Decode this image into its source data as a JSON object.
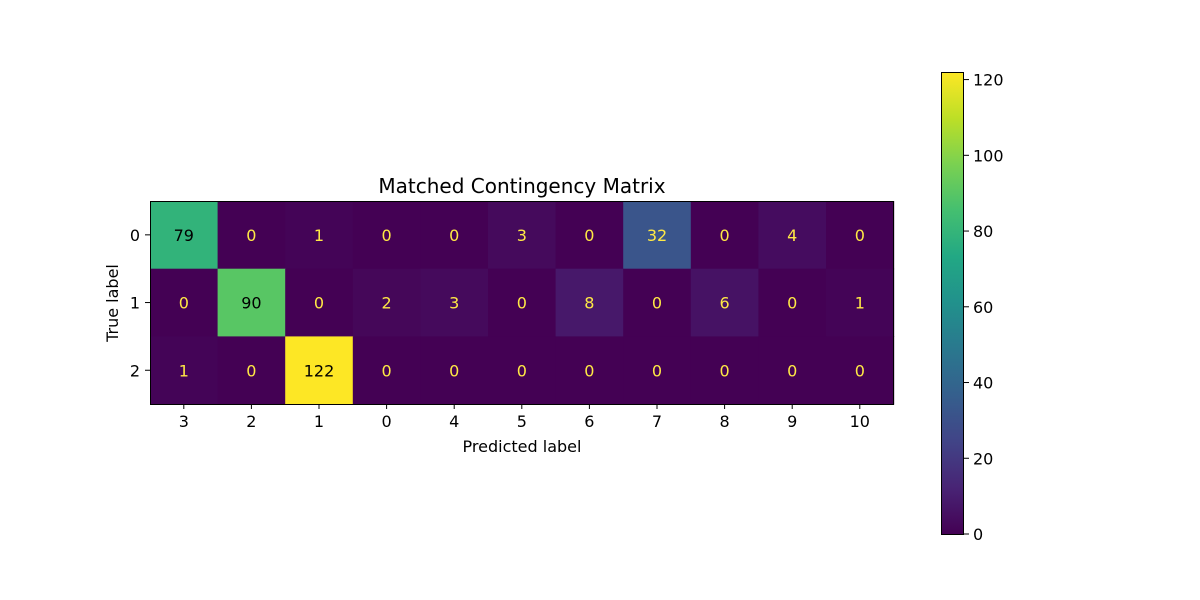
{
  "chart_data": {
    "type": "heatmap",
    "title": "Matched Contingency Matrix",
    "xlabel": "Predicted label",
    "ylabel": "True label",
    "x_categories": [
      "3",
      "2",
      "1",
      "0",
      "4",
      "5",
      "6",
      "7",
      "8",
      "9",
      "10"
    ],
    "y_categories": [
      "0",
      "1",
      "2"
    ],
    "values": [
      [
        79,
        0,
        1,
        0,
        0,
        3,
        0,
        32,
        0,
        4,
        0
      ],
      [
        0,
        90,
        0,
        2,
        3,
        0,
        8,
        0,
        6,
        0,
        1
      ],
      [
        1,
        0,
        122,
        0,
        0,
        0,
        0,
        0,
        0,
        0,
        0
      ]
    ],
    "colormap": "viridis",
    "color_range": [
      0,
      122
    ],
    "colorbar_ticks": [
      0,
      20,
      40,
      60,
      80,
      100,
      120
    ],
    "text_color_low": "#ffe945",
    "text_color_high": "#000000",
    "grid": false
  }
}
